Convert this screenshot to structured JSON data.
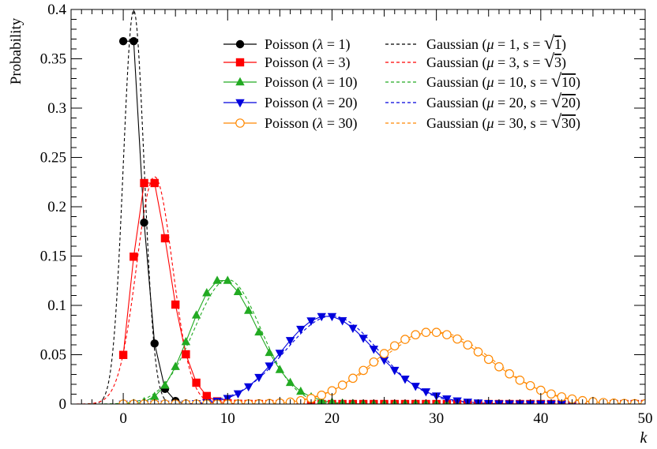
{
  "chart_data": {
    "type": "line",
    "xlabel": "k",
    "ylabel": "Probability",
    "xlim": [
      -5,
      50
    ],
    "ylim": [
      0,
      0.4
    ],
    "x_ticks": [
      "0",
      "10",
      "20",
      "30",
      "40",
      "50"
    ],
    "y_ticks": [
      "0",
      "0.05",
      "0.1",
      "0.15",
      "0.2",
      "0.25",
      "0.3",
      "0.35",
      "0.4"
    ],
    "legend_position": "top-right",
    "series": [
      {
        "label_name": "Poisson (",
        "label_param": "λ",
        "label_value": " =  1)",
        "kind": "poisson",
        "lambda": 1,
        "color": "#000000",
        "marker": "circle"
      },
      {
        "label_name": "Poisson (",
        "label_param": "λ",
        "label_value": " =  3)",
        "kind": "poisson",
        "lambda": 3,
        "color": "#ff0000",
        "marker": "square"
      },
      {
        "label_name": "Poisson (",
        "label_param": "λ",
        "label_value": " = 10)",
        "kind": "poisson",
        "lambda": 10,
        "color": "#22aa22",
        "marker": "triangle-up"
      },
      {
        "label_name": "Poisson (",
        "label_param": "λ",
        "label_value": " = 20)",
        "kind": "poisson",
        "lambda": 20,
        "color": "#0000dd",
        "marker": "triangle-down"
      },
      {
        "label_name": "Poisson (",
        "label_param": "λ",
        "label_value": " = 30)",
        "kind": "poisson",
        "lambda": 30,
        "color": "#ff8800",
        "marker": "open-circle"
      },
      {
        "label_name": "Gaussian (",
        "label_param": "μ",
        "label_value": " =  1, s = ",
        "label_sqrt": "1",
        "kind": "gaussian",
        "mu": 1,
        "color": "#000000",
        "dash": true
      },
      {
        "label_name": "Gaussian (",
        "label_param": "μ",
        "label_value": " =  3, s = ",
        "label_sqrt": "3",
        "kind": "gaussian",
        "mu": 3,
        "color": "#ff0000",
        "dash": true
      },
      {
        "label_name": "Gaussian (",
        "label_param": "μ",
        "label_value": " = 10, s = ",
        "label_sqrt": "10",
        "kind": "gaussian",
        "mu": 10,
        "color": "#22aa22",
        "dash": true
      },
      {
        "label_name": "Gaussian (",
        "label_param": "μ",
        "label_value": " = 20, s = ",
        "label_sqrt": "20",
        "kind": "gaussian",
        "mu": 20,
        "color": "#0000dd",
        "dash": true
      },
      {
        "label_name": "Gaussian (",
        "label_param": "μ",
        "label_value": " = 30, s = ",
        "label_sqrt": "30",
        "kind": "gaussian",
        "mu": 30,
        "color": "#ff8800",
        "dash": true
      }
    ]
  }
}
